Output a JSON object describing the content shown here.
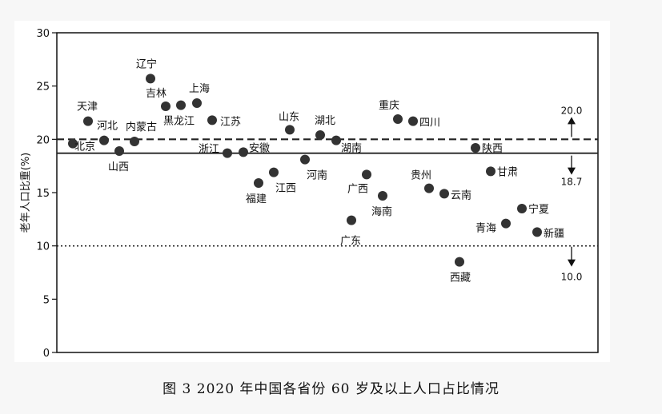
{
  "caption": "图 3   2020 年中国各省份 60 岁及以上人口占比情况",
  "chart_data": {
    "type": "scatter",
    "title": "",
    "xlabel": "",
    "ylabel": "老年人口比重(%)",
    "ylim": [
      0,
      30
    ],
    "yticks": [
      0,
      5,
      10,
      15,
      20,
      25,
      30
    ],
    "grid": false,
    "colors": {
      "point": "#333333",
      "line": "#222222"
    },
    "points": [
      {
        "name": "北京",
        "value": 19.6
      },
      {
        "name": "天津",
        "value": 21.7
      },
      {
        "name": "河北",
        "value": 19.9
      },
      {
        "name": "山西",
        "value": 18.9
      },
      {
        "name": "内蒙古",
        "value": 19.8
      },
      {
        "name": "辽宁",
        "value": 25.7
      },
      {
        "name": "吉林",
        "value": 23.1
      },
      {
        "name": "黑龙江",
        "value": 23.2
      },
      {
        "name": "上海",
        "value": 23.4
      },
      {
        "name": "江苏",
        "value": 21.8
      },
      {
        "name": "浙江",
        "value": 18.7
      },
      {
        "name": "安徽",
        "value": 18.8
      },
      {
        "name": "福建",
        "value": 15.9
      },
      {
        "name": "江西",
        "value": 16.9
      },
      {
        "name": "山东",
        "value": 20.9
      },
      {
        "name": "河南",
        "value": 18.1
      },
      {
        "name": "湖北",
        "value": 20.4
      },
      {
        "name": "湖南",
        "value": 19.9
      },
      {
        "name": "广东",
        "value": 12.4
      },
      {
        "name": "广西",
        "value": 16.7
      },
      {
        "name": "海南",
        "value": 14.7
      },
      {
        "name": "重庆",
        "value": 21.9
      },
      {
        "name": "四川",
        "value": 21.7
      },
      {
        "name": "贵州",
        "value": 15.4
      },
      {
        "name": "云南",
        "value": 14.9
      },
      {
        "name": "西藏",
        "value": 8.5
      },
      {
        "name": "陕西",
        "value": 19.2
      },
      {
        "name": "甘肃",
        "value": 17.0
      },
      {
        "name": "青海",
        "value": 12.1
      },
      {
        "name": "宁夏",
        "value": 13.5
      },
      {
        "name": "新疆",
        "value": 11.3
      }
    ],
    "reference_lines": [
      {
        "value": 20.0,
        "style": "dashed",
        "label": "20.0"
      },
      {
        "value": 18.7,
        "style": "solid",
        "label": "18.7"
      },
      {
        "value": 10.0,
        "style": "dotted",
        "label": "10.0"
      }
    ]
  }
}
